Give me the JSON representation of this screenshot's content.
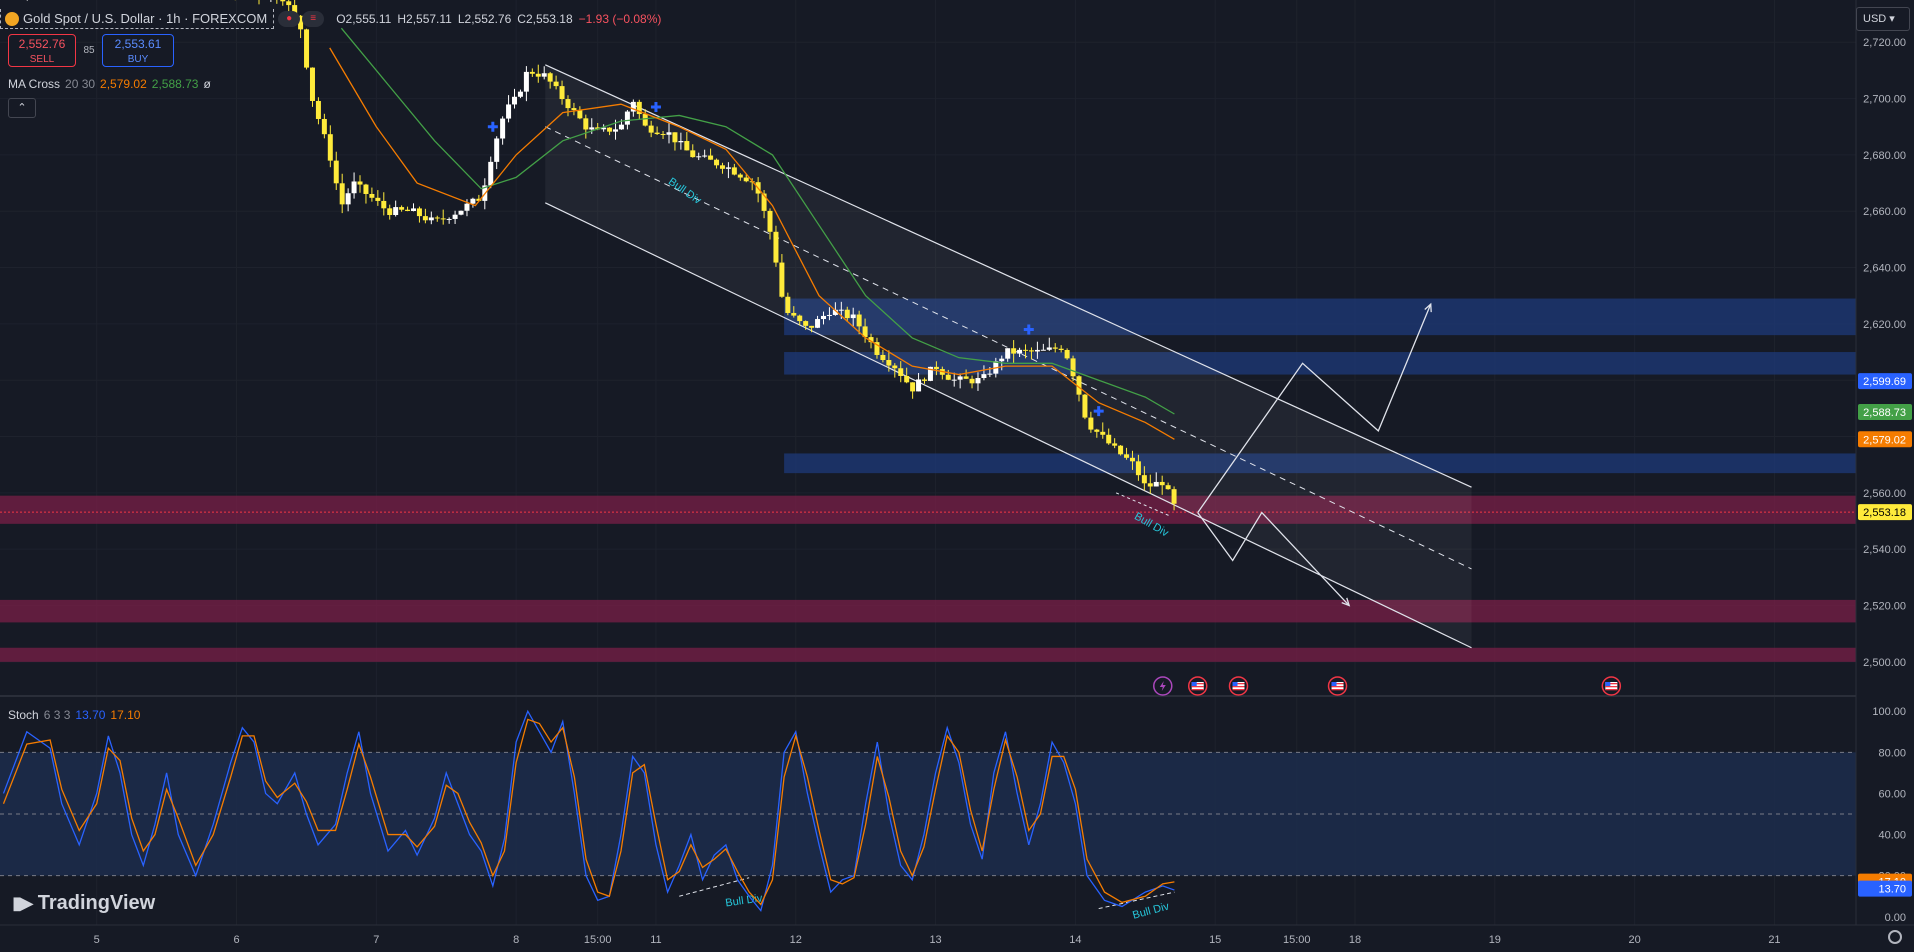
{
  "symbol": {
    "name": "Gold Spot / U.S. Dollar · 1h · FOREXCOM",
    "open_label": "O",
    "open": "2,555.11",
    "high_label": "H",
    "high": "2,557.11",
    "low_label": "L",
    "low": "2,552.76",
    "close_label": "C",
    "close": "2,553.18",
    "change": "−1.93 (−0.08%)"
  },
  "trade": {
    "sell_price": "2,552.76",
    "sell_label": "SELL",
    "spread": "85",
    "buy_price": "2,553.61",
    "buy_label": "BUY"
  },
  "ma_cross": {
    "name": "MA Cross",
    "params": "20 30",
    "fast_value": "2,579.02",
    "slow_value": "2,588.73",
    "extra": "ø",
    "fast_color": "#f57c00",
    "slow_color": "#43a047"
  },
  "collapse_glyph": "⌃",
  "stoch": {
    "name": "Stoch",
    "params": "6 3 3",
    "k_value": "13.70",
    "d_value": "17.10",
    "k_color": "#2962ff",
    "d_color": "#f57c00"
  },
  "currency": "USD ▾",
  "brand": "TradingView",
  "price_badges": [
    {
      "value": "2,599.69",
      "price": 2599.69,
      "bg": "#2962ff",
      "fg": "#ffffff"
    },
    {
      "value": "2,588.73",
      "price": 2588.73,
      "bg": "#43a047",
      "fg": "#ffffff"
    },
    {
      "value": "2,579.02",
      "price": 2579.02,
      "bg": "#f57c00",
      "fg": "#ffffff"
    },
    {
      "value": "2,553.18",
      "price": 2553.18,
      "bg": "#ffeb3b",
      "fg": "#000000"
    }
  ],
  "stoch_badges": [
    {
      "value": "17.10",
      "level": 17.1,
      "bg": "#f57c00",
      "fg": "#ffffff"
    },
    {
      "value": "13.70",
      "level": 13.7,
      "bg": "#2962ff",
      "fg": "#ffffff"
    }
  ],
  "annotations": [
    "Bull Div",
    "Bull Div",
    "Bull Div",
    "Bull Div"
  ],
  "chart_data": {
    "type": "candlestick",
    "title": "Gold Spot / U.S. Dollar · 1h · FOREXCOM",
    "ylim": [
      2490,
      2735
    ],
    "y_ticks": [
      "2,720.00",
      "2,700.00",
      "2,680.00",
      "2,660.00",
      "2,640.00",
      "2,620.00",
      "2,600.00",
      "2,580.00",
      "2,560.00",
      "2,540.00",
      "2,520.00",
      "2,500.00"
    ],
    "y_tick_values": [
      2720,
      2700,
      2680,
      2660,
      2640,
      2620,
      2600,
      2580,
      2560,
      2540,
      2520,
      2500
    ],
    "x_ticks": [
      "5",
      "6",
      "7",
      "8",
      "15:00",
      "11",
      "12",
      "13",
      "14",
      "15",
      "15:00",
      "18",
      "19",
      "20",
      "21"
    ],
    "x_tick_positions": [
      0,
      24,
      48,
      72,
      86,
      96,
      120,
      144,
      168,
      192,
      206,
      216,
      240,
      264,
      288
    ],
    "x_range": [
      -16.6,
      302
    ],
    "price_path": [
      [
        -16,
        2738
      ],
      [
        0,
        2742
      ],
      [
        16,
        2740
      ],
      [
        24,
        2738
      ],
      [
        32,
        2736
      ],
      [
        35,
        2725
      ],
      [
        37,
        2700
      ],
      [
        40,
        2680
      ],
      [
        42,
        2662
      ],
      [
        44,
        2670
      ],
      [
        47,
        2665
      ],
      [
        50,
        2660
      ],
      [
        54,
        2660
      ],
      [
        58,
        2656
      ],
      [
        62,
        2660
      ],
      [
        66,
        2665
      ],
      [
        68,
        2682
      ],
      [
        70,
        2695
      ],
      [
        72,
        2700
      ],
      [
        74,
        2710
      ],
      [
        77,
        2708
      ],
      [
        80,
        2700
      ],
      [
        84,
        2690
      ],
      [
        86,
        2688
      ],
      [
        90,
        2690
      ],
      [
        92,
        2700
      ],
      [
        94,
        2690
      ],
      [
        98,
        2688
      ],
      [
        102,
        2680
      ],
      [
        108,
        2676
      ],
      [
        113,
        2670
      ],
      [
        116,
        2650
      ],
      [
        118,
        2625
      ],
      [
        122,
        2618
      ],
      [
        126,
        2625
      ],
      [
        130,
        2622
      ],
      [
        134,
        2610
      ],
      [
        137,
        2605
      ],
      [
        140,
        2597
      ],
      [
        144,
        2605
      ],
      [
        147,
        2600
      ],
      [
        152,
        2600
      ],
      [
        156,
        2610
      ],
      [
        162,
        2610
      ],
      [
        166,
        2612
      ],
      [
        168,
        2600
      ],
      [
        170,
        2585
      ],
      [
        175,
        2575
      ],
      [
        178,
        2570
      ],
      [
        180,
        2562
      ],
      [
        183,
        2564
      ],
      [
        185,
        2555
      ]
    ],
    "ma_fast": [
      [
        40,
        2718
      ],
      [
        48,
        2690
      ],
      [
        55,
        2670
      ],
      [
        65,
        2662
      ],
      [
        72,
        2680
      ],
      [
        80,
        2695
      ],
      [
        90,
        2698
      ],
      [
        100,
        2690
      ],
      [
        108,
        2682
      ],
      [
        116,
        2662
      ],
      [
        124,
        2630
      ],
      [
        132,
        2615
      ],
      [
        140,
        2605
      ],
      [
        148,
        2602
      ],
      [
        156,
        2605
      ],
      [
        164,
        2605
      ],
      [
        172,
        2592
      ],
      [
        180,
        2585
      ],
      [
        185,
        2579
      ]
    ],
    "ma_slow": [
      [
        42,
        2725
      ],
      [
        50,
        2705
      ],
      [
        58,
        2685
      ],
      [
        66,
        2668
      ],
      [
        72,
        2672
      ],
      [
        80,
        2685
      ],
      [
        90,
        2692
      ],
      [
        100,
        2694
      ],
      [
        108,
        2690
      ],
      [
        116,
        2680
      ],
      [
        124,
        2655
      ],
      [
        132,
        2630
      ],
      [
        140,
        2615
      ],
      [
        148,
        2608
      ],
      [
        156,
        2606
      ],
      [
        164,
        2606
      ],
      [
        172,
        2600
      ],
      [
        180,
        2594
      ],
      [
        185,
        2588
      ]
    ],
    "channel_upper": [
      [
        77,
        2712
      ],
      [
        236,
        2562
      ]
    ],
    "channel_lower": [
      [
        77,
        2663
      ],
      [
        236,
        2505
      ]
    ],
    "channel_mid": [
      [
        77,
        2690
      ],
      [
        236,
        2533
      ]
    ],
    "zones_blue": [
      [
        2629,
        2616
      ],
      [
        2610,
        2602
      ],
      [
        2574,
        2567
      ]
    ],
    "zones_red": [
      [
        2559,
        2549
      ],
      [
        2522,
        2514
      ],
      [
        2505,
        2500
      ]
    ],
    "zones_blue_start": 118,
    "zones_red_start": -16.6,
    "projection_up": [
      [
        189,
        2553
      ],
      [
        207,
        2606
      ],
      [
        220,
        2582
      ],
      [
        229,
        2627
      ]
    ],
    "projection_down": [
      [
        189,
        2553
      ],
      [
        195,
        2536
      ],
      [
        200,
        2553
      ],
      [
        215,
        2520
      ]
    ],
    "signals_x": [
      68,
      96,
      160,
      172
    ],
    "event_icons_x": [
      183,
      189,
      196,
      213,
      260
    ],
    "stoch_ylim": [
      -4,
      104
    ],
    "stoch_ticks": [
      "100.00",
      "80.00",
      "60.00",
      "40.00",
      "20.00",
      "0.00"
    ],
    "stoch_tick_values": [
      100,
      80,
      60,
      40,
      20,
      0
    ],
    "stoch_band": [
      80,
      20
    ],
    "stoch_k": [
      [
        -16,
        60
      ],
      [
        -12,
        90
      ],
      [
        -8,
        82
      ],
      [
        -6,
        55
      ],
      [
        -3,
        35
      ],
      [
        0,
        60
      ],
      [
        2,
        88
      ],
      [
        4,
        70
      ],
      [
        6,
        40
      ],
      [
        8,
        25
      ],
      [
        10,
        45
      ],
      [
        12,
        70
      ],
      [
        14,
        40
      ],
      [
        17,
        20
      ],
      [
        20,
        45
      ],
      [
        23,
        75
      ],
      [
        25,
        92
      ],
      [
        27,
        85
      ],
      [
        29,
        60
      ],
      [
        31,
        55
      ],
      [
        34,
        70
      ],
      [
        36,
        50
      ],
      [
        38,
        35
      ],
      [
        41,
        45
      ],
      [
        43,
        70
      ],
      [
        45,
        90
      ],
      [
        47,
        60
      ],
      [
        50,
        32
      ],
      [
        53,
        42
      ],
      [
        55,
        30
      ],
      [
        58,
        48
      ],
      [
        60,
        70
      ],
      [
        62,
        55
      ],
      [
        64,
        40
      ],
      [
        66,
        32
      ],
      [
        68,
        15
      ],
      [
        70,
        38
      ],
      [
        72,
        85
      ],
      [
        74,
        100
      ],
      [
        76,
        90
      ],
      [
        78,
        80
      ],
      [
        80,
        95
      ],
      [
        82,
        60
      ],
      [
        84,
        20
      ],
      [
        86,
        8
      ],
      [
        88,
        10
      ],
      [
        90,
        40
      ],
      [
        92,
        78
      ],
      [
        94,
        70
      ],
      [
        96,
        35
      ],
      [
        98,
        12
      ],
      [
        100,
        25
      ],
      [
        102,
        40
      ],
      [
        104,
        18
      ],
      [
        106,
        30
      ],
      [
        108,
        35
      ],
      [
        110,
        18
      ],
      [
        112,
        10
      ],
      [
        114,
        3
      ],
      [
        116,
        25
      ],
      [
        118,
        80
      ],
      [
        120,
        90
      ],
      [
        122,
        60
      ],
      [
        124,
        35
      ],
      [
        126,
        12
      ],
      [
        128,
        18
      ],
      [
        130,
        20
      ],
      [
        132,
        55
      ],
      [
        134,
        85
      ],
      [
        136,
        50
      ],
      [
        138,
        25
      ],
      [
        140,
        18
      ],
      [
        142,
        40
      ],
      [
        144,
        70
      ],
      [
        146,
        92
      ],
      [
        148,
        75
      ],
      [
        150,
        45
      ],
      [
        152,
        28
      ],
      [
        154,
        70
      ],
      [
        156,
        90
      ],
      [
        158,
        60
      ],
      [
        160,
        35
      ],
      [
        162,
        55
      ],
      [
        164,
        85
      ],
      [
        166,
        75
      ],
      [
        168,
        55
      ],
      [
        170,
        20
      ],
      [
        173,
        8
      ],
      [
        176,
        5
      ],
      [
        180,
        12
      ],
      [
        183,
        15
      ],
      [
        185,
        13
      ]
    ],
    "stoch_d": [
      [
        -16,
        55
      ],
      [
        -12,
        84
      ],
      [
        -8,
        86
      ],
      [
        -6,
        62
      ],
      [
        -3,
        42
      ],
      [
        0,
        55
      ],
      [
        2,
        82
      ],
      [
        4,
        76
      ],
      [
        6,
        48
      ],
      [
        8,
        32
      ],
      [
        10,
        40
      ],
      [
        12,
        62
      ],
      [
        14,
        48
      ],
      [
        17,
        25
      ],
      [
        20,
        40
      ],
      [
        23,
        68
      ],
      [
        25,
        88
      ],
      [
        27,
        88
      ],
      [
        29,
        66
      ],
      [
        31,
        58
      ],
      [
        34,
        65
      ],
      [
        36,
        56
      ],
      [
        38,
        42
      ],
      [
        41,
        42
      ],
      [
        43,
        62
      ],
      [
        45,
        84
      ],
      [
        47,
        68
      ],
      [
        50,
        40
      ],
      [
        53,
        40
      ],
      [
        55,
        34
      ],
      [
        58,
        44
      ],
      [
        60,
        64
      ],
      [
        62,
        60
      ],
      [
        64,
        46
      ],
      [
        66,
        36
      ],
      [
        68,
        20
      ],
      [
        70,
        32
      ],
      [
        72,
        75
      ],
      [
        74,
        96
      ],
      [
        76,
        94
      ],
      [
        78,
        85
      ],
      [
        80,
        92
      ],
      [
        82,
        68
      ],
      [
        84,
        28
      ],
      [
        86,
        12
      ],
      [
        88,
        10
      ],
      [
        90,
        32
      ],
      [
        92,
        70
      ],
      [
        94,
        74
      ],
      [
        96,
        45
      ],
      [
        98,
        18
      ],
      [
        100,
        22
      ],
      [
        102,
        35
      ],
      [
        104,
        24
      ],
      [
        106,
        28
      ],
      [
        108,
        33
      ],
      [
        110,
        22
      ],
      [
        112,
        12
      ],
      [
        114,
        6
      ],
      [
        116,
        18
      ],
      [
        118,
        68
      ],
      [
        120,
        88
      ],
      [
        122,
        68
      ],
      [
        124,
        42
      ],
      [
        126,
        18
      ],
      [
        128,
        16
      ],
      [
        130,
        19
      ],
      [
        132,
        45
      ],
      [
        134,
        78
      ],
      [
        136,
        58
      ],
      [
        138,
        32
      ],
      [
        140,
        20
      ],
      [
        142,
        34
      ],
      [
        144,
        62
      ],
      [
        146,
        88
      ],
      [
        148,
        80
      ],
      [
        150,
        52
      ],
      [
        152,
        32
      ],
      [
        154,
        62
      ],
      [
        156,
        86
      ],
      [
        158,
        68
      ],
      [
        160,
        42
      ],
      [
        162,
        50
      ],
      [
        164,
        78
      ],
      [
        166,
        78
      ],
      [
        168,
        62
      ],
      [
        170,
        28
      ],
      [
        173,
        12
      ],
      [
        176,
        7
      ],
      [
        180,
        10
      ],
      [
        183,
        16
      ],
      [
        185,
        17
      ]
    ]
  }
}
